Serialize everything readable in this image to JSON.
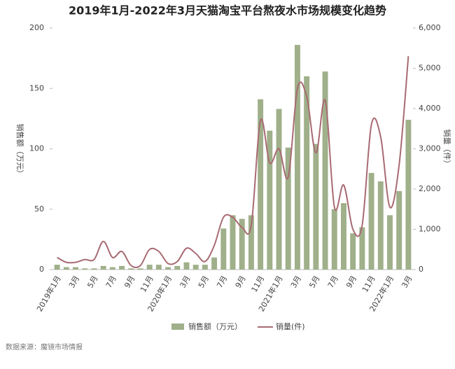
{
  "chart_data": {
    "type": "bar-line",
    "title": "2019年1月-2022年3月天猫淘宝平台熬夜水市场规模变化趋势",
    "y_label": "销售额（万元）",
    "y2_label": "销量（件）",
    "source": "数据来源：魔镜市场情报",
    "categories": [
      "2019年1月",
      null,
      "3月",
      null,
      "5月",
      null,
      "7月",
      null,
      "9月",
      null,
      "11月",
      null,
      "2020年1月",
      null,
      "3月",
      null,
      "5月",
      null,
      "7月",
      null,
      "9月",
      null,
      "11月",
      null,
      "2021年1月",
      null,
      "3月",
      null,
      "5月",
      null,
      "7月",
      null,
      "9月",
      null,
      "11月",
      null,
      "2022年1月",
      null,
      "3月"
    ],
    "series": [
      {
        "name": "销售额（万元）",
        "type": "bar",
        "color": "#9fb08a",
        "values": [
          4,
          2,
          2,
          1,
          1,
          3,
          2,
          3,
          1,
          1,
          4,
          4,
          2,
          3,
          6,
          4,
          4,
          10,
          34,
          45,
          42,
          45,
          141,
          115,
          133,
          101,
          186,
          160,
          104,
          164,
          50,
          55,
          30,
          35,
          80,
          73,
          45,
          65,
          124
        ]
      },
      {
        "name": "销量(件)",
        "type": "line",
        "axis": "y2",
        "color": "#a86a72",
        "values": [
          300,
          180,
          180,
          250,
          250,
          700,
          300,
          450,
          100,
          100,
          500,
          450,
          150,
          200,
          530,
          400,
          200,
          600,
          1300,
          1300,
          1050,
          1100,
          3700,
          2650,
          3000,
          2300,
          4500,
          4300,
          2900,
          4200,
          1550,
          2100,
          1000,
          1100,
          3600,
          3300,
          1550,
          2600,
          5300
        ]
      }
    ],
    "ylim": [
      0,
      200
    ],
    "yticks": [
      0,
      50,
      100,
      150,
      200
    ],
    "y2lim": [
      0,
      6000
    ],
    "y2ticks": [
      0,
      {
        "value": 1000,
        "label": "1,000"
      },
      {
        "value": 2000,
        "label": "2,000"
      },
      {
        "value": 3000,
        "label": "3,000"
      },
      {
        "value": 4000,
        "label": "4,000"
      },
      {
        "value": 5000,
        "label": "5,000"
      },
      {
        "value": 6000,
        "label": "6,000"
      }
    ],
    "legend": "bottom"
  }
}
